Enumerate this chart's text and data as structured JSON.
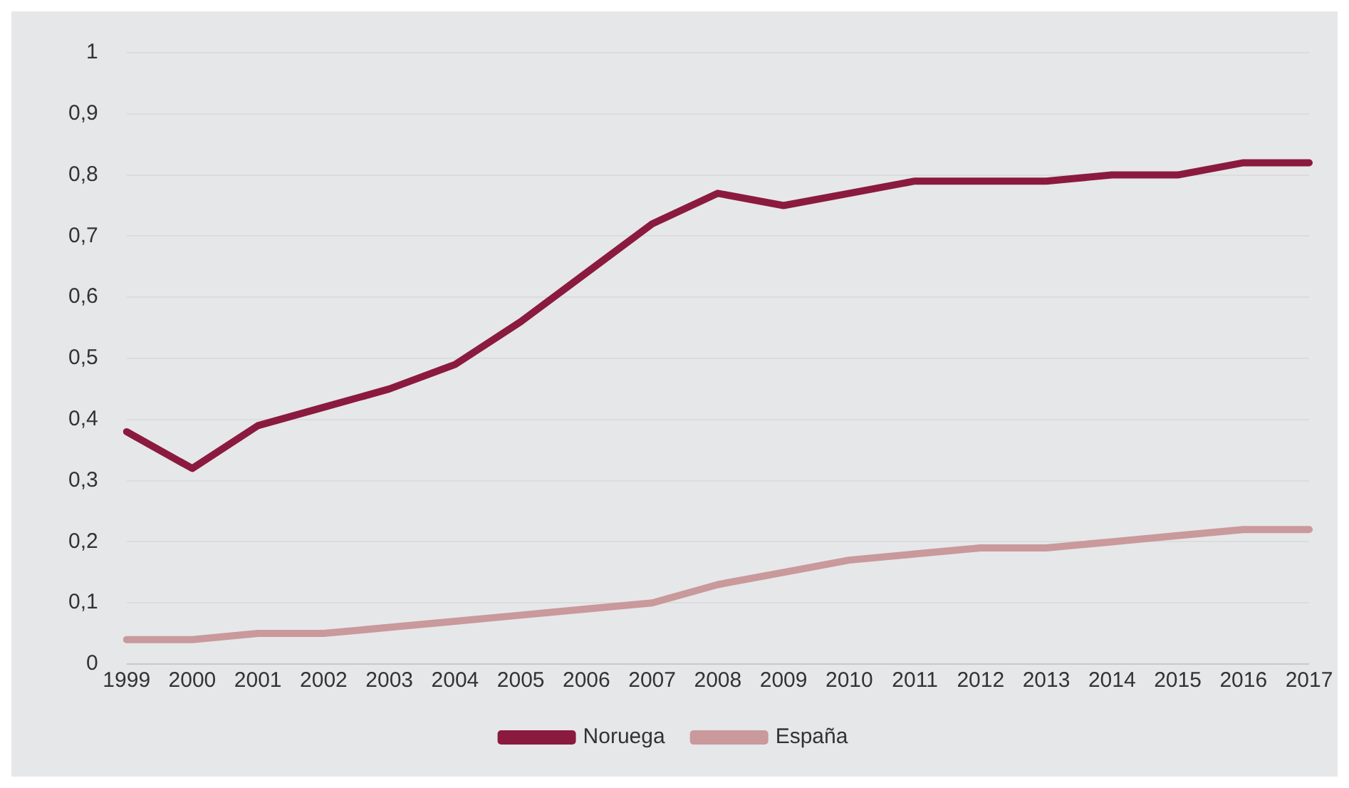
{
  "chart_data": {
    "type": "line",
    "categories": [
      "1999",
      "2000",
      "2001",
      "2002",
      "2003",
      "2004",
      "2005",
      "2006",
      "2007",
      "2008",
      "2009",
      "2010",
      "2011",
      "2012",
      "2013",
      "2014",
      "2015",
      "2016",
      "2017"
    ],
    "series": [
      {
        "name": "Noruega",
        "color": "#8b1a3f",
        "values": [
          0.38,
          0.32,
          0.39,
          0.42,
          0.45,
          0.49,
          0.56,
          0.64,
          0.72,
          0.77,
          0.75,
          0.77,
          0.79,
          0.79,
          0.79,
          0.8,
          0.8,
          0.82,
          0.82
        ]
      },
      {
        "name": "España",
        "color": "#c9999b",
        "values": [
          0.04,
          0.04,
          0.05,
          0.05,
          0.06,
          0.07,
          0.08,
          0.09,
          0.1,
          0.13,
          0.15,
          0.17,
          0.18,
          0.19,
          0.19,
          0.2,
          0.21,
          0.22,
          0.22
        ]
      }
    ],
    "ylim": [
      0,
      1
    ],
    "yticks": [
      0,
      {
        "value": 0.1,
        "label": "0,1"
      },
      {
        "value": 0.2,
        "label": "0,2"
      },
      {
        "value": 0.3,
        "label": "0,3"
      },
      {
        "value": 0.4,
        "label": "0,4"
      },
      {
        "value": 0.5,
        "label": "0,5"
      },
      {
        "value": 0.6,
        "label": "0,6"
      },
      {
        "value": 0.7,
        "label": "0,7"
      },
      {
        "value": 0.8,
        "label": "0,8"
      },
      {
        "value": 0.9,
        "label": "0,9"
      },
      1
    ],
    "grid": "y",
    "legend": "bottom",
    "marker": "none",
    "line_style": "solid"
  }
}
